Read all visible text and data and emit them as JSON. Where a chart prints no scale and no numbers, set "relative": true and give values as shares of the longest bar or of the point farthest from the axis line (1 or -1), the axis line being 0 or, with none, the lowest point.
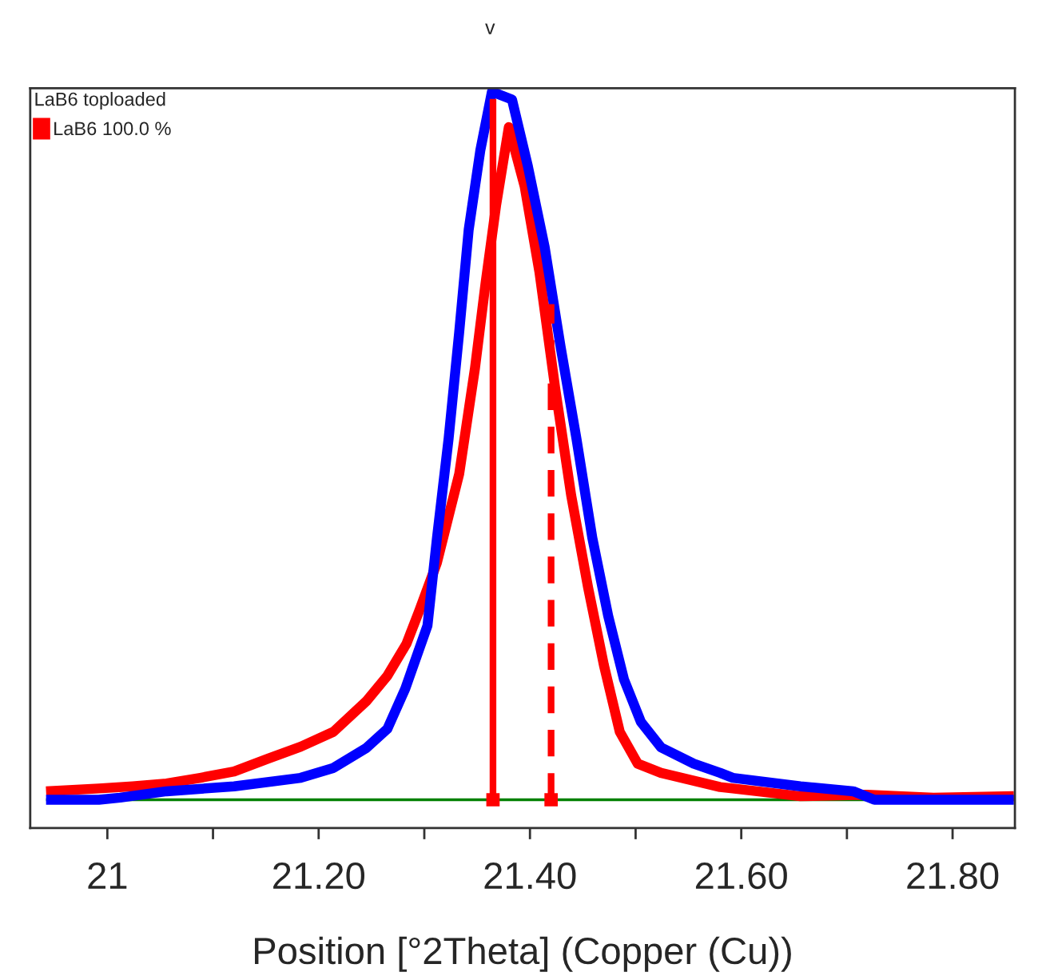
{
  "chart_data": {
    "type": "line",
    "relative": true,
    "xlabel": "Position [°2Theta] (Copper (Cu))",
    "legend_title": "LaB6 toploaded",
    "legend": "top left",
    "grid": false,
    "tick_labels": "x",
    "xlim": [
      20.927,
      21.859
    ],
    "xticks": [
      {
        "value": 21,
        "label": "21"
      },
      {
        "value": 21.2,
        "label": "21.20"
      },
      {
        "value": 21.4,
        "label": "21.40"
      },
      {
        "value": 21.6,
        "label": "21.60"
      },
      {
        "value": 21.8,
        "label": "21.80"
      }
    ],
    "annotations": [
      "v"
    ],
    "series": [
      {
        "color": "#008000",
        "x": [
          20.942,
          21.858
        ],
        "values": [
          0,
          0
        ]
      },
      {
        "color": "#ff0000",
        "x": [
          20.942,
          20.992,
          21.024,
          21.056,
          21.088,
          21.12,
          21.152,
          21.183,
          21.214,
          21.245,
          21.265,
          21.283,
          21.296,
          21.312,
          21.333,
          21.348,
          21.358,
          21.368,
          21.38,
          21.395,
          21.409,
          21.424,
          21.439,
          21.455,
          21.47,
          21.485,
          21.502,
          21.524,
          21.58,
          21.592,
          21.656,
          21.719,
          21.782,
          21.858
        ],
        "values": [
          0.012,
          0.016,
          0.019,
          0.023,
          0.031,
          0.04,
          0.058,
          0.075,
          0.096,
          0.139,
          0.175,
          0.22,
          0.27,
          0.335,
          0.46,
          0.61,
          0.73,
          0.84,
          0.95,
          0.866,
          0.745,
          0.58,
          0.43,
          0.3,
          0.19,
          0.096,
          0.051,
          0.038,
          0.018,
          0.016,
          0.005,
          0.007,
          0.003,
          0.005
        ]
      },
      {
        "color": "#0000ff",
        "x": [
          20.942,
          20.992,
          21.012,
          21.056,
          21.12,
          21.183,
          21.214,
          21.245,
          21.265,
          21.282,
          21.303,
          21.312,
          21.323,
          21.333,
          21.342,
          21.353,
          21.364,
          21.383,
          21.398,
          21.414,
          21.429,
          21.444,
          21.459,
          21.474,
          21.489,
          21.505,
          21.524,
          21.555,
          21.58,
          21.592,
          21.656,
          21.706,
          21.726,
          21.795,
          21.858
        ],
        "values": [
          0,
          0,
          0.003,
          0.012,
          0.019,
          0.031,
          0.045,
          0.073,
          0.1,
          0.157,
          0.246,
          0.37,
          0.51,
          0.66,
          0.805,
          0.917,
          1.0,
          0.989,
          0.895,
          0.78,
          0.64,
          0.51,
          0.37,
          0.26,
          0.17,
          0.11,
          0.074,
          0.051,
          0.038,
          0.031,
          0.019,
          0.012,
          0,
          0,
          0
        ]
      },
      {
        "name": "LaB6 100.0 %",
        "color": "#ff0000",
        "line_style": "solid",
        "x": [
          21.365,
          21.365
        ],
        "values": [
          0,
          0.99
        ]
      },
      {
        "color": "#ff0000",
        "line_style": "dashed",
        "x": [
          21.42,
          21.42
        ],
        "values": [
          0,
          0.7
        ]
      }
    ]
  }
}
